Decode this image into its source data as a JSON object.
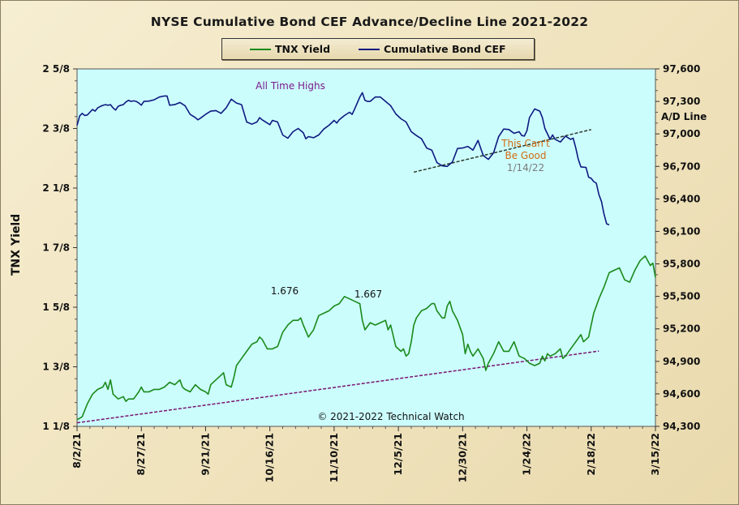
{
  "chart_data": {
    "type": "line",
    "title": "NYSE Cumulative  Bond CEF Advance/Decline  Line 2021-2022",
    "xlabel": "",
    "ylabel_left": "TNX Yield",
    "ylabel_right": "A/D Line",
    "legend_position": "top-center",
    "grid": false,
    "x_ticks": [
      "8/2/21",
      "8/27/21",
      "9/21/21",
      "10/16/21",
      "11/10/21",
      "12/5/21",
      "12/30/21",
      "1/24/22",
      "2/18/22",
      "3/15/22"
    ],
    "x_range_days": [
      0,
      225
    ],
    "y_left_ticks": [
      {
        "label": "1 1/8",
        "value": 1.125
      },
      {
        "label": "1 3/8",
        "value": 1.375
      },
      {
        "label": "1 5/8",
        "value": 1.625
      },
      {
        "label": "1 7/8",
        "value": 1.875
      },
      {
        "label": "2 1/8",
        "value": 2.125
      },
      {
        "label": "2 3/8",
        "value": 2.375
      },
      {
        "label": "2 5/8",
        "value": 2.625
      }
    ],
    "y_left_range": [
      1.125,
      2.625
    ],
    "y_right_ticks": [
      "94,300",
      "94,600",
      "94,900",
      "95,200",
      "95,500",
      "95,800",
      "96,100",
      "96,400",
      "96,700",
      "97,000",
      "97,300",
      "97,600"
    ],
    "y_right_range": [
      94300,
      97600
    ],
    "series": [
      {
        "name": "TNX Yield",
        "axis": "left",
        "color": "#1a8a1a",
        "points": [
          [
            0,
            1.153
          ],
          [
            2,
            1.165
          ],
          [
            4,
            1.22
          ],
          [
            6,
            1.26
          ],
          [
            8,
            1.28
          ],
          [
            10,
            1.29
          ],
          [
            11,
            1.31
          ],
          [
            12,
            1.28
          ],
          [
            13,
            1.32
          ],
          [
            14,
            1.26
          ],
          [
            16,
            1.24
          ],
          [
            18,
            1.25
          ],
          [
            19,
            1.23
          ],
          [
            20,
            1.24
          ],
          [
            22,
            1.24
          ],
          [
            24,
            1.27
          ],
          [
            25,
            1.29
          ],
          [
            26,
            1.27
          ],
          [
            28,
            1.27
          ],
          [
            30,
            1.28
          ],
          [
            32,
            1.28
          ],
          [
            34,
            1.29
          ],
          [
            36,
            1.31
          ],
          [
            38,
            1.3
          ],
          [
            40,
            1.32
          ],
          [
            41,
            1.29
          ],
          [
            42,
            1.28
          ],
          [
            44,
            1.27
          ],
          [
            46,
            1.3
          ],
          [
            48,
            1.28
          ],
          [
            50,
            1.27
          ],
          [
            51,
            1.26
          ],
          [
            52,
            1.3
          ],
          [
            54,
            1.32
          ],
          [
            56,
            1.34
          ],
          [
            57,
            1.35
          ],
          [
            58,
            1.3
          ],
          [
            60,
            1.29
          ],
          [
            61,
            1.33
          ],
          [
            62,
            1.38
          ],
          [
            64,
            1.41
          ],
          [
            66,
            1.44
          ],
          [
            68,
            1.47
          ],
          [
            70,
            1.48
          ],
          [
            71,
            1.5
          ],
          [
            72,
            1.49
          ],
          [
            74,
            1.45
          ],
          [
            76,
            1.45
          ],
          [
            78,
            1.46
          ],
          [
            80,
            1.52
          ],
          [
            82,
            1.55
          ],
          [
            84,
            1.57
          ],
          [
            86,
            1.57
          ],
          [
            87,
            1.58
          ],
          [
            88,
            1.55
          ],
          [
            90,
            1.5
          ],
          [
            92,
            1.53
          ],
          [
            94,
            1.59
          ],
          [
            96,
            1.6
          ],
          [
            98,
            1.61
          ],
          [
            100,
            1.63
          ],
          [
            102,
            1.64
          ],
          [
            104,
            1.67
          ],
          [
            106,
            1.66
          ],
          [
            108,
            1.65
          ],
          [
            110,
            1.64
          ],
          [
            111,
            1.57
          ],
          [
            112,
            1.53
          ],
          [
            114,
            1.56
          ],
          [
            116,
            1.55
          ],
          [
            118,
            1.56
          ],
          [
            120,
            1.57
          ],
          [
            121,
            1.53
          ],
          [
            122,
            1.55
          ],
          [
            124,
            1.46
          ],
          [
            126,
            1.44
          ],
          [
            127,
            1.45
          ],
          [
            128,
            1.42
          ],
          [
            129,
            1.43
          ],
          [
            130,
            1.48
          ],
          [
            131,
            1.55
          ],
          [
            132,
            1.58
          ],
          [
            134,
            1.61
          ],
          [
            136,
            1.62
          ],
          [
            138,
            1.64
          ],
          [
            139,
            1.64
          ],
          [
            140,
            1.61
          ],
          [
            142,
            1.58
          ],
          [
            143,
            1.58
          ],
          [
            144,
            1.63
          ],
          [
            145,
            1.65
          ],
          [
            146,
            1.61
          ],
          [
            148,
            1.57
          ],
          [
            150,
            1.51
          ],
          [
            151,
            1.43
          ],
          [
            152,
            1.47
          ],
          [
            153,
            1.44
          ],
          [
            154,
            1.42
          ],
          [
            156,
            1.45
          ],
          [
            158,
            1.41
          ],
          [
            159,
            1.36
          ],
          [
            160,
            1.39
          ],
          [
            162,
            1.43
          ],
          [
            164,
            1.48
          ],
          [
            166,
            1.44
          ],
          [
            168,
            1.44
          ],
          [
            170,
            1.48
          ],
          [
            172,
            1.42
          ],
          [
            174,
            1.41
          ],
          [
            176,
            1.39
          ],
          [
            178,
            1.38
          ],
          [
            180,
            1.39
          ],
          [
            181,
            1.42
          ],
          [
            182,
            1.4
          ],
          [
            183,
            1.43
          ],
          [
            184,
            1.42
          ],
          [
            186,
            1.43
          ],
          [
            188,
            1.45
          ],
          [
            189,
            1.41
          ],
          [
            190,
            1.42
          ],
          [
            192,
            1.45
          ],
          [
            194,
            1.48
          ],
          [
            196,
            1.51
          ],
          [
            197,
            1.48
          ],
          [
            199,
            1.5
          ],
          [
            201,
            1.6
          ],
          [
            203,
            1.66
          ],
          [
            205,
            1.71
          ],
          [
            207,
            1.77
          ],
          [
            209,
            1.78
          ],
          [
            211,
            1.79
          ],
          [
            213,
            1.74
          ],
          [
            215,
            1.73
          ],
          [
            217,
            1.78
          ],
          [
            219,
            1.82
          ],
          [
            221,
            1.84
          ],
          [
            223,
            1.8
          ],
          [
            224,
            1.81
          ],
          [
            225,
            1.75
          ]
        ]
      },
      {
        "name": "Cumulative Bond CEF",
        "axis": "right",
        "color": "#0d1a80",
        "points": [
          [
            0,
            97078
          ],
          [
            1,
            97165
          ],
          [
            2,
            97190
          ],
          [
            3,
            97170
          ],
          [
            4,
            97175
          ],
          [
            5,
            97200
          ],
          [
            6,
            97225
          ],
          [
            7,
            97210
          ],
          [
            8,
            97240
          ],
          [
            9,
            97253
          ],
          [
            10,
            97263
          ],
          [
            11,
            97270
          ],
          [
            12,
            97265
          ],
          [
            13,
            97270
          ],
          [
            14,
            97240
          ],
          [
            15,
            97220
          ],
          [
            16,
            97255
          ],
          [
            17,
            97265
          ],
          [
            18,
            97270
          ],
          [
            19,
            97295
          ],
          [
            20,
            97310
          ],
          [
            21,
            97300
          ],
          [
            22,
            97305
          ],
          [
            23,
            97300
          ],
          [
            24,
            97285
          ],
          [
            25,
            97265
          ],
          [
            26,
            97300
          ],
          [
            28,
            97303
          ],
          [
            30,
            97315
          ],
          [
            32,
            97340
          ],
          [
            34,
            97350
          ],
          [
            35,
            97350
          ],
          [
            36,
            97265
          ],
          [
            38,
            97270
          ],
          [
            40,
            97290
          ],
          [
            42,
            97260
          ],
          [
            44,
            97180
          ],
          [
            46,
            97150
          ],
          [
            47,
            97130
          ],
          [
            48,
            97145
          ],
          [
            50,
            97180
          ],
          [
            52,
            97210
          ],
          [
            54,
            97215
          ],
          [
            56,
            97190
          ],
          [
            58,
            97240
          ],
          [
            60,
            97320
          ],
          [
            62,
            97285
          ],
          [
            64,
            97270
          ],
          [
            66,
            97110
          ],
          [
            68,
            97090
          ],
          [
            70,
            97110
          ],
          [
            71,
            97150
          ],
          [
            72,
            97130
          ],
          [
            74,
            97100
          ],
          [
            75,
            97085
          ],
          [
            76,
            97125
          ],
          [
            78,
            97110
          ],
          [
            80,
            96990
          ],
          [
            82,
            96960
          ],
          [
            84,
            97020
          ],
          [
            86,
            97050
          ],
          [
            88,
            97010
          ],
          [
            89,
            96955
          ],
          [
            90,
            96975
          ],
          [
            92,
            96965
          ],
          [
            94,
            96990
          ],
          [
            96,
            97045
          ],
          [
            98,
            97080
          ],
          [
            100,
            97125
          ],
          [
            101,
            97100
          ],
          [
            102,
            97130
          ],
          [
            104,
            97170
          ],
          [
            106,
            97200
          ],
          [
            107,
            97180
          ],
          [
            108,
            97230
          ],
          [
            110,
            97340
          ],
          [
            111,
            97380
          ],
          [
            112,
            97310
          ],
          [
            113,
            97300
          ],
          [
            114,
            97300
          ],
          [
            116,
            97340
          ],
          [
            118,
            97340
          ],
          [
            120,
            97300
          ],
          [
            122,
            97260
          ],
          [
            124,
            97185
          ],
          [
            126,
            97140
          ],
          [
            128,
            97110
          ],
          [
            130,
            97020
          ],
          [
            132,
            96985
          ],
          [
            134,
            96955
          ],
          [
            136,
            96870
          ],
          [
            138,
            96850
          ],
          [
            140,
            96735
          ],
          [
            142,
            96705
          ],
          [
            144,
            96700
          ],
          [
            146,
            96740
          ],
          [
            148,
            96865
          ],
          [
            150,
            96870
          ],
          [
            152,
            96885
          ],
          [
            154,
            96850
          ],
          [
            156,
            96940
          ],
          [
            158,
            96800
          ],
          [
            160,
            96765
          ],
          [
            162,
            96825
          ],
          [
            164,
            96975
          ],
          [
            166,
            97045
          ],
          [
            168,
            97040
          ],
          [
            170,
            97005
          ],
          [
            172,
            97020
          ],
          [
            173,
            96985
          ],
          [
            174,
            96980
          ],
          [
            175,
            97030
          ],
          [
            176,
            97150
          ],
          [
            178,
            97230
          ],
          [
            180,
            97210
          ],
          [
            181,
            97150
          ],
          [
            182,
            97050
          ],
          [
            184,
            96950
          ],
          [
            185,
            96990
          ],
          [
            186,
            96950
          ],
          [
            188,
            96925
          ],
          [
            190,
            96980
          ],
          [
            192,
            96950
          ],
          [
            193,
            96960
          ],
          [
            194,
            96870
          ],
          [
            195,
            96765
          ],
          [
            196,
            96695
          ],
          [
            198,
            96690
          ],
          [
            199,
            96600
          ],
          [
            200,
            96590
          ],
          [
            201,
            96560
          ],
          [
            202,
            96545
          ],
          [
            203,
            96440
          ],
          [
            204,
            96375
          ],
          [
            205,
            96260
          ],
          [
            206,
            96170
          ],
          [
            207,
            96160
          ]
        ]
      }
    ],
    "trendlines": [
      {
        "axis": "right",
        "style": "dashed",
        "color": "#2c3a2c",
        "points": [
          [
            131,
            96647
          ],
          [
            200,
            97040
          ]
        ]
      },
      {
        "axis": "left",
        "style": "dashed",
        "color": "#7a1370",
        "points": [
          [
            0,
            1.14
          ],
          [
            203,
            1.441
          ]
        ]
      }
    ],
    "annotations": [
      {
        "text": "All Time Highs",
        "color": "#7a1a8a"
      },
      {
        "text": "1.676",
        "color": "#111111"
      },
      {
        "text": "1.667",
        "color": "#111111"
      },
      {
        "text": "This Can't",
        "color": "#d06a10"
      },
      {
        "text": "Be Good",
        "color": "#d06a10"
      },
      {
        "text": "1/14/22",
        "color": "#7a7a7a"
      },
      {
        "text": "© 2021-2022  Technical Watch",
        "color": "#111111"
      }
    ]
  }
}
